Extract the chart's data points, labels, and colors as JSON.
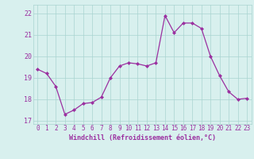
{
  "x": [
    0,
    1,
    2,
    3,
    4,
    5,
    6,
    7,
    8,
    9,
    10,
    11,
    12,
    13,
    14,
    15,
    16,
    17,
    18,
    19,
    20,
    21,
    22,
    23
  ],
  "y": [
    19.4,
    19.2,
    18.6,
    17.3,
    17.5,
    17.8,
    17.85,
    18.1,
    19.0,
    19.55,
    19.7,
    19.65,
    19.55,
    19.7,
    21.9,
    21.1,
    21.55,
    21.55,
    21.3,
    20.0,
    19.1,
    18.35,
    18.0,
    18.05
  ],
  "line_color": "#9b30a0",
  "marker": "D",
  "marker_size": 2.0,
  "bg_color": "#d8f0ee",
  "grid_color": "#aad4d0",
  "tick_color": "#9b30a0",
  "xlabel": "Windchill (Refroidissement éolien,°C)",
  "xlabel_fontsize": 6.0,
  "xlim": [
    -0.5,
    23.5
  ],
  "ylim": [
    16.85,
    22.4
  ],
  "yticks": [
    17,
    18,
    19,
    20,
    21,
    22
  ],
  "xticks": [
    0,
    1,
    2,
    3,
    4,
    5,
    6,
    7,
    8,
    9,
    10,
    11,
    12,
    13,
    14,
    15,
    16,
    17,
    18,
    19,
    20,
    21,
    22,
    23
  ],
  "tick_fontsize": 5.5,
  "ytick_fontsize": 6.0,
  "linewidth": 0.9
}
